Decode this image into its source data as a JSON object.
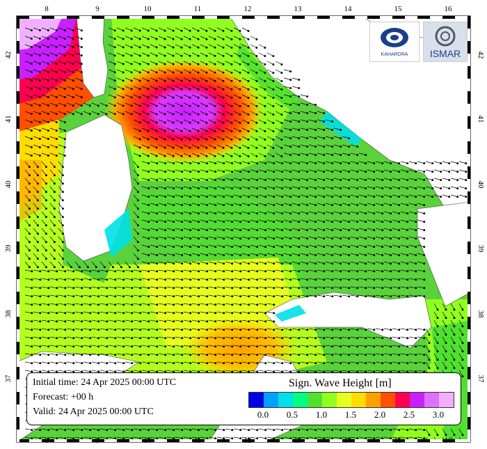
{
  "map": {
    "lon_labels": [
      "8",
      "9",
      "10",
      "11",
      "12",
      "13",
      "14",
      "15",
      "16"
    ],
    "lat_labels": [
      "42",
      "41",
      "40",
      "39",
      "38",
      "37"
    ],
    "variable": "Sign. Wave Height [m]"
  },
  "info": {
    "initial_time": "Initial time: 24 Apr 2025 00:00 UTC",
    "forecast": "Forecast: +00 h",
    "valid": "Valid: 24 Apr 2025 00:00 UTC"
  },
  "legend": {
    "title": "Sign. Wave Height [m]",
    "colors": [
      "#0000e6",
      "#00a0ff",
      "#00e0e6",
      "#00ff80",
      "#50e030",
      "#90ff20",
      "#e6ff20",
      "#ffdc00",
      "#ffa000",
      "#ff5000",
      "#ff0050",
      "#c820ff",
      "#dd70ff",
      "#f0b0ff"
    ],
    "labels": [
      "0.0",
      "0.5",
      "1.0",
      "1.5",
      "2.0",
      "2.5",
      "3.0"
    ]
  },
  "logos": {
    "left_text": "KAHARDRA",
    "right_text": "ISMAR"
  },
  "colors": {
    "land": "#ffffff",
    "sea_base": "#5ad23c",
    "frame": "#000000"
  }
}
